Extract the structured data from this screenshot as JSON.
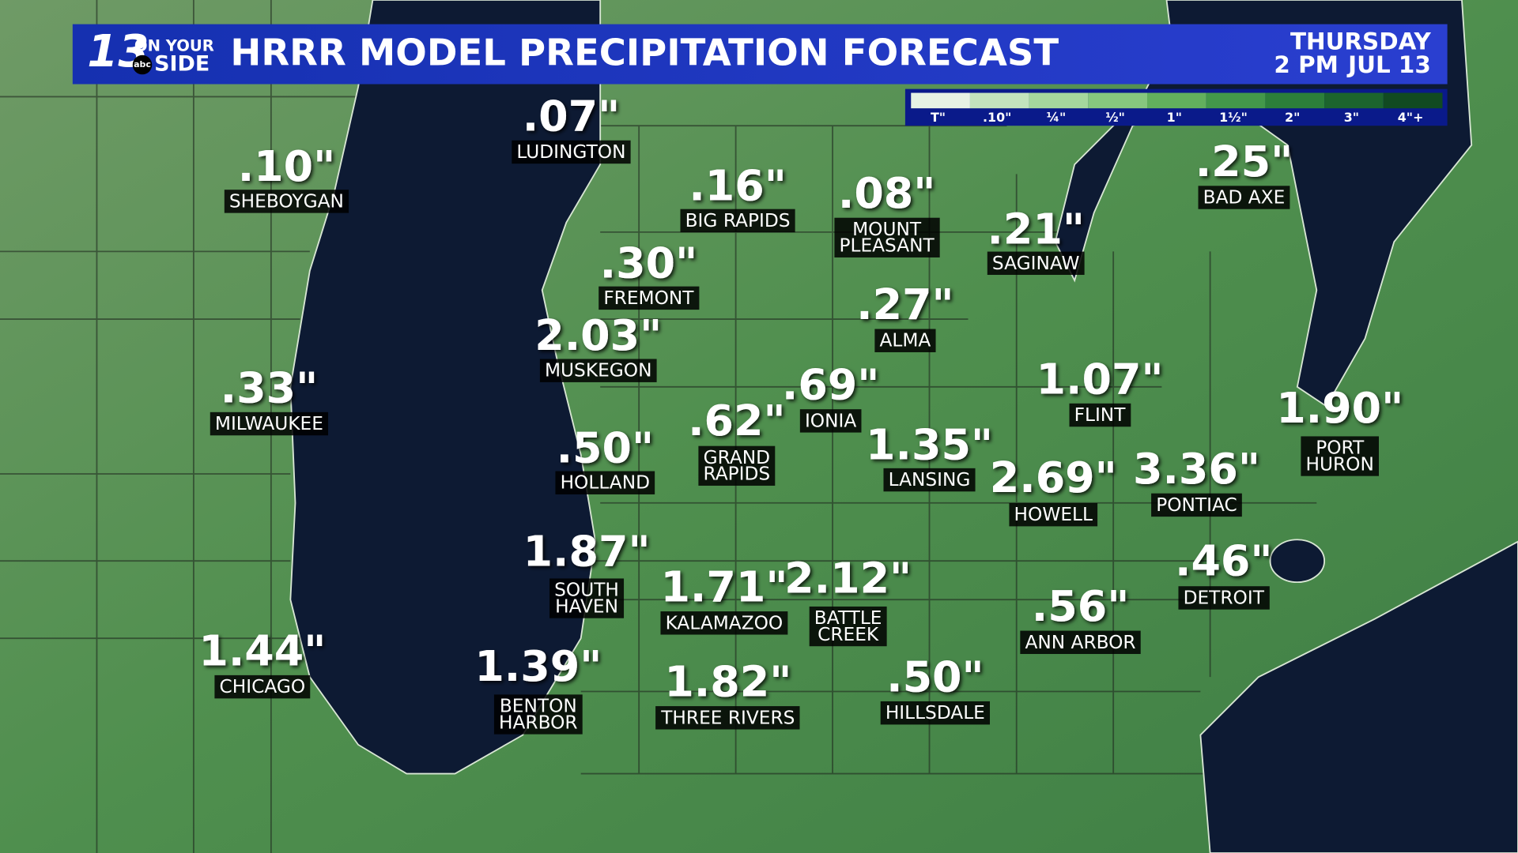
{
  "header": {
    "title": "HRRR MODEL PRECIPITATION FORECAST",
    "day": "THURSDAY",
    "time": "2 PM",
    "date": "JUL 13"
  },
  "logo": {
    "number": "13",
    "top": "ON YOUR",
    "bottom": "SIDE",
    "network": "abc"
  },
  "legend": {
    "items": [
      {
        "label": "T\"",
        "color": "#e6f2e4"
      },
      {
        "label": ".10\"",
        "color": "#c3e3bd"
      },
      {
        "label": "¼\"",
        "color": "#a5d79d"
      },
      {
        "label": "½\"",
        "color": "#86c77e"
      },
      {
        "label": "1\"",
        "color": "#62b05d"
      },
      {
        "label": "1½\"",
        "color": "#43984a"
      },
      {
        "label": "2\"",
        "color": "#2c7f3a"
      },
      {
        "label": "3\"",
        "color": "#1c642d"
      },
      {
        "label": "4\"+",
        "color": "#114a21"
      }
    ]
  },
  "cities": [
    {
      "amount": ".07\"",
      "name": [
        "LUDINGTON"
      ]
    },
    {
      "amount": ".10\"",
      "name": [
        "SHEBOYGAN"
      ]
    },
    {
      "amount": ".16\"",
      "name": [
        "BIG RAPIDS"
      ]
    },
    {
      "amount": ".08\"",
      "name": [
        "MOUNT",
        "PLEASANT"
      ]
    },
    {
      "amount": ".21\"",
      "name": [
        "SAGINAW"
      ]
    },
    {
      "amount": ".25\"",
      "name": [
        "BAD AXE"
      ]
    },
    {
      "amount": ".30\"",
      "name": [
        "FREMONT"
      ]
    },
    {
      "amount": ".27\"",
      "name": [
        "ALMA"
      ]
    },
    {
      "amount": "2.03\"",
      "name": [
        "MUSKEGON"
      ]
    },
    {
      "amount": ".33\"",
      "name": [
        "MILWAUKEE"
      ]
    },
    {
      "amount": ".69\"",
      "name": [
        "IONIA"
      ]
    },
    {
      "amount": "1.07\"",
      "name": [
        "FLINT"
      ]
    },
    {
      "amount": "1.90\"",
      "name": [
        "PORT",
        "HURON"
      ]
    },
    {
      "amount": ".62\"",
      "name": [
        "GRAND",
        "RAPIDS"
      ]
    },
    {
      "amount": ".50\"",
      "name": [
        "HOLLAND"
      ]
    },
    {
      "amount": "1.35\"",
      "name": [
        "LANSING"
      ]
    },
    {
      "amount": "2.69\"",
      "name": [
        "HOWELL"
      ]
    },
    {
      "amount": "3.36\"",
      "name": [
        "PONTIAC"
      ]
    },
    {
      "amount": "1.87\"",
      "name": [
        "SOUTH",
        "HAVEN"
      ]
    },
    {
      "amount": "1.71\"",
      "name": [
        "KALAMAZOO"
      ]
    },
    {
      "amount": "2.12\"",
      "name": [
        "BATTLE",
        "CREEK"
      ]
    },
    {
      "amount": ".46\"",
      "name": [
        "DETROIT"
      ]
    },
    {
      "amount": ".56\"",
      "name": [
        "ANN ARBOR"
      ]
    },
    {
      "amount": "1.44\"",
      "name": [
        "CHICAGO"
      ]
    },
    {
      "amount": "1.39\"",
      "name": [
        "BENTON",
        "HARBOR"
      ]
    },
    {
      "amount": "1.82\"",
      "name": [
        "THREE RIVERS"
      ]
    },
    {
      "amount": ".50\"",
      "name": [
        "HILLSDALE"
      ]
    }
  ]
}
